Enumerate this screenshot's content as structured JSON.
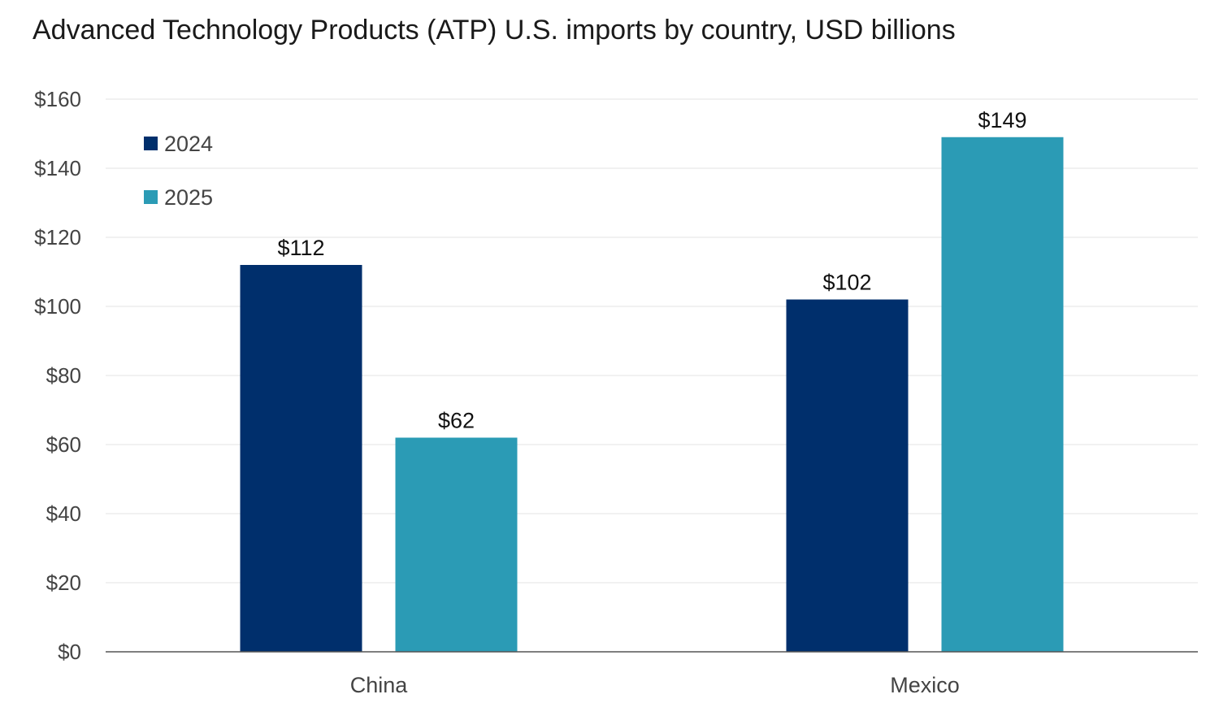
{
  "chart_data": {
    "type": "bar",
    "title": "Advanced Technology Products (ATP) U.S. imports by country, USD billions",
    "categories": [
      "China",
      "Mexico"
    ],
    "series": [
      {
        "name": "2024",
        "color": "#002f6c",
        "values": [
          112,
          102
        ],
        "labels": [
          "$112",
          "$102"
        ]
      },
      {
        "name": "2025",
        "color": "#2b9bb5",
        "values": [
          62,
          149
        ],
        "labels": [
          "$62",
          "$149"
        ]
      }
    ],
    "ylim": [
      0,
      160
    ],
    "yticks": [
      0,
      20,
      40,
      60,
      80,
      100,
      120,
      140,
      160
    ],
    "ytick_labels": [
      "$0",
      "$20",
      "$40",
      "$60",
      "$80",
      "$100",
      "$120",
      "$140",
      "$160"
    ],
    "xlabel": "",
    "ylabel": "",
    "grid": true,
    "legend_position": "top-left"
  }
}
